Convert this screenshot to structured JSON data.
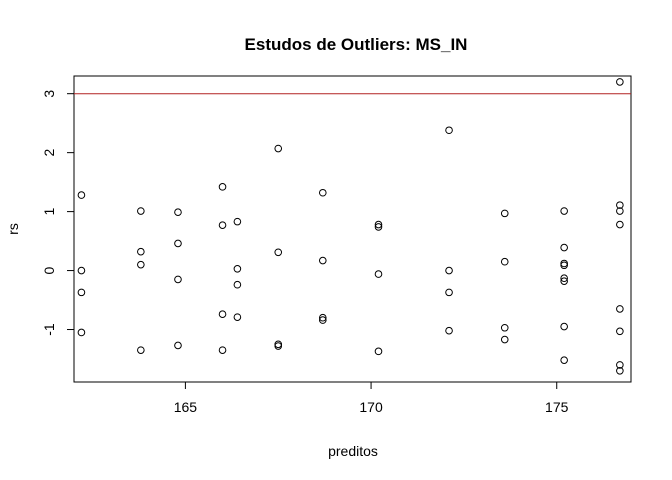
{
  "chart_data": {
    "type": "scatter",
    "title": "Estudos de Outliers:  MS_IN",
    "xlabel": "preditos",
    "ylabel": "rs",
    "xlim": [
      162.0,
      177.0
    ],
    "ylim": [
      -1.89,
      3.3
    ],
    "x_ticks": [
      165,
      170,
      175
    ],
    "x_tick_labels": [
      "165",
      "170",
      "175"
    ],
    "y_ticks": [
      -1,
      0,
      1,
      2,
      3
    ],
    "y_tick_labels": [
      "-1",
      "0",
      "1",
      "2",
      "3"
    ],
    "reference_line": {
      "y": 3,
      "color": "#b22222"
    },
    "grid": false,
    "points": [
      {
        "x": 162.2,
        "y": 1.28
      },
      {
        "x": 162.2,
        "y": 0.0
      },
      {
        "x": 162.2,
        "y": -0.37
      },
      {
        "x": 162.2,
        "y": -1.05
      },
      {
        "x": 163.8,
        "y": 1.01
      },
      {
        "x": 163.8,
        "y": 0.32
      },
      {
        "x": 163.8,
        "y": 0.1
      },
      {
        "x": 163.8,
        "y": -1.35
      },
      {
        "x": 164.8,
        "y": 0.99
      },
      {
        "x": 164.8,
        "y": 0.46
      },
      {
        "x": 164.8,
        "y": -0.15
      },
      {
        "x": 164.8,
        "y": -1.27
      },
      {
        "x": 166.0,
        "y": 1.42
      },
      {
        "x": 166.0,
        "y": 0.77
      },
      {
        "x": 166.0,
        "y": -0.74
      },
      {
        "x": 166.0,
        "y": -1.35
      },
      {
        "x": 166.4,
        "y": 0.83
      },
      {
        "x": 166.4,
        "y": 0.03
      },
      {
        "x": 166.4,
        "y": -0.24
      },
      {
        "x": 166.4,
        "y": -0.79
      },
      {
        "x": 167.5,
        "y": 2.07
      },
      {
        "x": 167.5,
        "y": 0.31
      },
      {
        "x": 167.5,
        "y": -1.25
      },
      {
        "x": 167.5,
        "y": -1.28
      },
      {
        "x": 168.7,
        "y": 1.32
      },
      {
        "x": 168.7,
        "y": 0.17
      },
      {
        "x": 168.7,
        "y": -0.8
      },
      {
        "x": 168.7,
        "y": -0.84
      },
      {
        "x": 170.2,
        "y": 0.78
      },
      {
        "x": 170.2,
        "y": 0.74
      },
      {
        "x": 170.2,
        "y": -0.06
      },
      {
        "x": 170.2,
        "y": -1.37
      },
      {
        "x": 172.1,
        "y": 2.38
      },
      {
        "x": 172.1,
        "y": 0.0
      },
      {
        "x": 172.1,
        "y": -0.37
      },
      {
        "x": 172.1,
        "y": -1.02
      },
      {
        "x": 173.6,
        "y": 0.97
      },
      {
        "x": 173.6,
        "y": 0.15
      },
      {
        "x": 173.6,
        "y": -0.97
      },
      {
        "x": 173.6,
        "y": -1.17
      },
      {
        "x": 175.2,
        "y": 1.01
      },
      {
        "x": 175.2,
        "y": 0.39
      },
      {
        "x": 175.2,
        "y": 0.12
      },
      {
        "x": 175.2,
        "y": 0.09
      },
      {
        "x": 175.2,
        "y": -0.13
      },
      {
        "x": 175.2,
        "y": -0.18
      },
      {
        "x": 175.2,
        "y": -0.95
      },
      {
        "x": 175.2,
        "y": -1.52
      },
      {
        "x": 176.7,
        "y": 3.2
      },
      {
        "x": 176.7,
        "y": 1.11
      },
      {
        "x": 176.7,
        "y": 1.01
      },
      {
        "x": 176.7,
        "y": 0.78
      },
      {
        "x": 176.7,
        "y": -0.65
      },
      {
        "x": 176.7,
        "y": -1.03
      },
      {
        "x": 176.7,
        "y": -1.6
      },
      {
        "x": 176.7,
        "y": -1.7
      }
    ]
  }
}
